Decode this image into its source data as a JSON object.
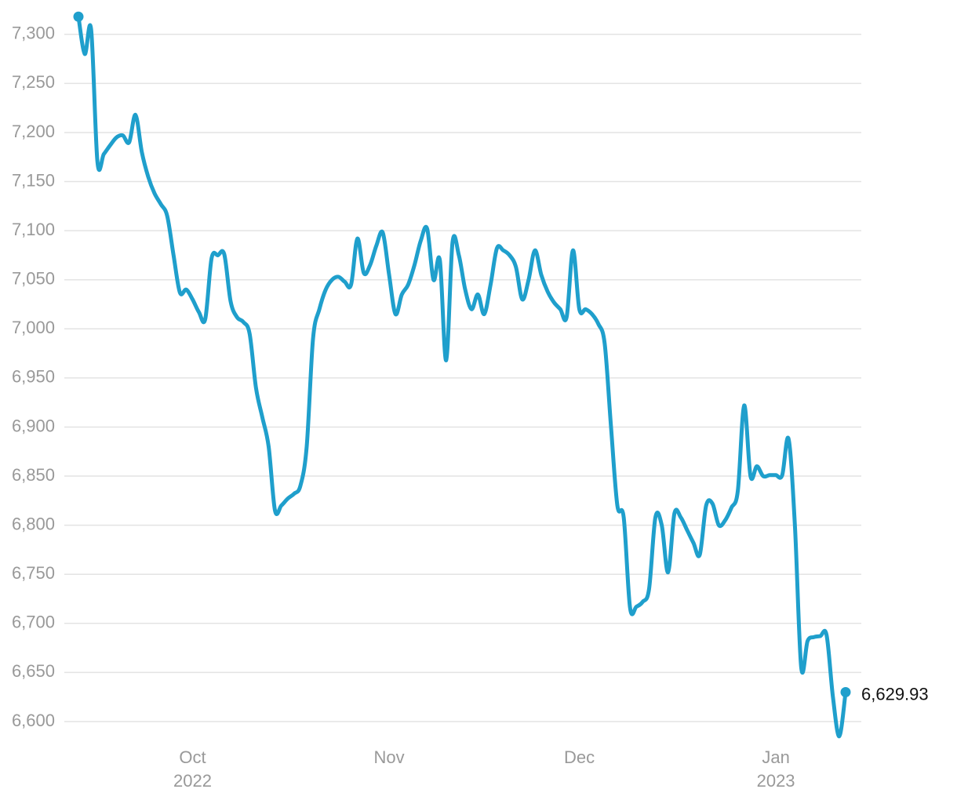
{
  "chart_data": {
    "type": "line",
    "categories": [
      null,
      null,
      null,
      null,
      null,
      null,
      null,
      null,
      null,
      null,
      null,
      null,
      null,
      null,
      null,
      null,
      null,
      null,
      "Oct 2022",
      null,
      null,
      null,
      null,
      null,
      null,
      null,
      null,
      null,
      null,
      null,
      null,
      null,
      null,
      null,
      null,
      null,
      null,
      null,
      null,
      null,
      null,
      null,
      null,
      null,
      null,
      null,
      null,
      null,
      null,
      "Nov",
      null,
      null,
      null,
      null,
      null,
      null,
      null,
      null,
      null,
      null,
      null,
      null,
      null,
      null,
      null,
      null,
      null,
      null,
      null,
      null,
      null,
      null,
      null,
      null,
      null,
      null,
      null,
      null,
      null,
      "Dec",
      null,
      null,
      null,
      null,
      null,
      null,
      null,
      null,
      null,
      null,
      null,
      null,
      null,
      null,
      null,
      null,
      null,
      null,
      null,
      null,
      null,
      null,
      null,
      null,
      null,
      null,
      null,
      null,
      null,
      null,
      "Jan 2023",
      null,
      null,
      null,
      null,
      null,
      null,
      null,
      null,
      null,
      null,
      null
    ],
    "series": [
      {
        "color": "#1f9fcc",
        "values": [
          7318,
          7280,
          7305,
          7170,
          7178,
          7187,
          7195,
          7197,
          7190,
          7218,
          7180,
          7155,
          7138,
          7127,
          7115,
          7075,
          7037,
          7040,
          7030,
          7017,
          7010,
          7072,
          7075,
          7076,
          7028,
          7012,
          7007,
          6995,
          6940,
          6910,
          6880,
          6815,
          6820,
          6827,
          6832,
          6840,
          6880,
          6990,
          7020,
          7040,
          7050,
          7053,
          7048,
          7045,
          7092,
          7057,
          7065,
          7085,
          7098,
          7055,
          7015,
          7035,
          7045,
          7065,
          7090,
          7102,
          7050,
          7070,
          6968,
          7088,
          7075,
          7040,
          7020,
          7035,
          7015,
          7045,
          7082,
          7080,
          7075,
          7063,
          7030,
          7050,
          7080,
          7055,
          7038,
          7027,
          7020,
          7012,
          7080,
          7020,
          7020,
          7015,
          7005,
          6985,
          6900,
          6820,
          6808,
          6716,
          6717,
          6722,
          6735,
          6808,
          6800,
          6752,
          6812,
          6808,
          6795,
          6782,
          6770,
          6820,
          6822,
          6800,
          6805,
          6818,
          6835,
          6922,
          6850,
          6860,
          6850,
          6851,
          6851,
          6851,
          6888,
          6800,
          6655,
          6682,
          6686,
          6687,
          6688,
          6625,
          6585,
          6629.93
        ],
        "value_labels": [
          null,
          null,
          null,
          null,
          null,
          null,
          null,
          null,
          null,
          null,
          null,
          null,
          null,
          null,
          null,
          null,
          null,
          null,
          null,
          null,
          null,
          null,
          null,
          null,
          null,
          null,
          null,
          null,
          null,
          null,
          null,
          null,
          null,
          null,
          null,
          null,
          null,
          null,
          null,
          null,
          null,
          null,
          null,
          null,
          null,
          null,
          null,
          null,
          null,
          null,
          null,
          null,
          null,
          null,
          null,
          null,
          null,
          null,
          null,
          null,
          null,
          null,
          null,
          null,
          null,
          null,
          null,
          null,
          null,
          null,
          null,
          null,
          null,
          null,
          null,
          null,
          null,
          null,
          null,
          null,
          null,
          null,
          null,
          null,
          null,
          null,
          null,
          null,
          null,
          null,
          null,
          null,
          null,
          null,
          null,
          null,
          null,
          null,
          null,
          null,
          null,
          null,
          null,
          null,
          null,
          null,
          null,
          null,
          null,
          null,
          null,
          null,
          null,
          null,
          null,
          null,
          null,
          null,
          null,
          null,
          null,
          "6,629.93"
        ]
      }
    ],
    "ylim": [
      6580,
      7335
    ],
    "yticks": [
      {
        "value": 6600,
        "label": "6,600"
      },
      {
        "value": 6650,
        "label": "6,650"
      },
      {
        "value": 6700,
        "label": "6,700"
      },
      {
        "value": 6750,
        "label": "6,750"
      },
      {
        "value": 6800,
        "label": "6,800"
      },
      {
        "value": 6850,
        "label": "6,850"
      },
      {
        "value": 6900,
        "label": "6,900"
      },
      {
        "value": 6950,
        "label": "6,950"
      },
      {
        "value": 7000,
        "label": "7,000"
      },
      {
        "value": 7050,
        "label": "7,050"
      },
      {
        "value": 7100,
        "label": "7,100"
      },
      {
        "value": 7150,
        "label": "7,150"
      },
      {
        "value": 7200,
        "label": "7,200"
      },
      {
        "value": 7250,
        "label": "7,250"
      },
      {
        "value": 7300,
        "label": "7,300"
      }
    ],
    "grid": true
  }
}
